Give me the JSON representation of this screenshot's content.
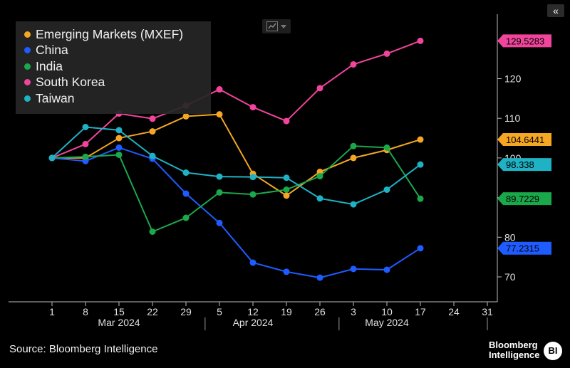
{
  "controls": {
    "collapse_label": "«",
    "chart_type_icon": "line-chart-icon"
  },
  "chart_data": {
    "type": "line",
    "title": "",
    "xlabel": "",
    "ylabel": "",
    "ylim": [
      66,
      138
    ],
    "xlim": [
      "2024-03-01",
      "2024-05-31"
    ],
    "y_ticks": [
      70,
      80,
      90,
      100,
      110,
      120
    ],
    "x_ticks": [
      {
        "date": "2024-03-01",
        "label": "1"
      },
      {
        "date": "2024-03-08",
        "label": "8"
      },
      {
        "date": "2024-03-15",
        "label": "15"
      },
      {
        "date": "2024-03-22",
        "label": "22"
      },
      {
        "date": "2024-03-29",
        "label": "29"
      },
      {
        "date": "2024-04-05",
        "label": "5"
      },
      {
        "date": "2024-04-12",
        "label": "12"
      },
      {
        "date": "2024-04-19",
        "label": "19"
      },
      {
        "date": "2024-04-26",
        "label": "26"
      },
      {
        "date": "2024-05-03",
        "label": "3"
      },
      {
        "date": "2024-05-10",
        "label": "10"
      },
      {
        "date": "2024-05-17",
        "label": "17"
      },
      {
        "date": "2024-05-24",
        "label": "24"
      },
      {
        "date": "2024-05-31",
        "label": "31"
      }
    ],
    "month_labels": [
      {
        "label": "Mar 2024",
        "mid": "2024-03-15"
      },
      {
        "label": "Apr 2024",
        "mid": "2024-04-12"
      },
      {
        "label": "May 2024",
        "mid": "2024-05-10"
      }
    ],
    "month_boundaries": [
      "2024-04-02",
      "2024-04-30",
      "2024-05-31"
    ],
    "x": [
      "2024-03-01",
      "2024-03-08",
      "2024-03-15",
      "2024-03-22",
      "2024-03-29",
      "2024-04-05",
      "2024-04-12",
      "2024-04-19",
      "2024-04-26",
      "2024-05-03",
      "2024-05-10",
      "2024-05-17"
    ],
    "series": [
      {
        "name": "Emerging Markets (MXEF)",
        "color": "#f5a623",
        "last_label": "104.6441",
        "values": [
          100,
          100,
          105,
          106.7,
          110.5,
          111,
          96,
          90.5,
          96.5,
          100,
          102,
          104.6441
        ]
      },
      {
        "name": "China",
        "color": "#1f5cff",
        "last_label": "77.2315",
        "values": [
          100,
          99.2,
          102.6,
          99.8,
          91,
          83.6,
          73.6,
          71.3,
          69.8,
          72,
          71.8,
          77.2315
        ]
      },
      {
        "name": "India",
        "color": "#1aa84a",
        "last_label": "89.7229",
        "values": [
          100,
          100.3,
          100.8,
          81.4,
          84.9,
          91.3,
          90.8,
          92,
          95.4,
          103,
          102.6,
          89.7229
        ]
      },
      {
        "name": "South Korea",
        "color": "#f0459b",
        "last_label": "129.5283",
        "values": [
          100,
          103.5,
          111.2,
          109.9,
          113.2,
          117.3,
          112.8,
          109.3,
          117.6,
          123.6,
          126.3,
          129.5283
        ]
      },
      {
        "name": "Taiwan",
        "color": "#1fb2c4",
        "last_label": "98.338",
        "values": [
          100,
          107.8,
          107,
          100.5,
          96.3,
          95.3,
          95.2,
          95,
          89.8,
          88.3,
          92,
          98.338
        ]
      }
    ],
    "grid": false,
    "legend_position": "top-left"
  },
  "footer": {
    "source": "Source: Bloomberg Intelligence",
    "brand_line1": "Bloomberg",
    "brand_line2": "Intelligence",
    "badge": "BI"
  }
}
